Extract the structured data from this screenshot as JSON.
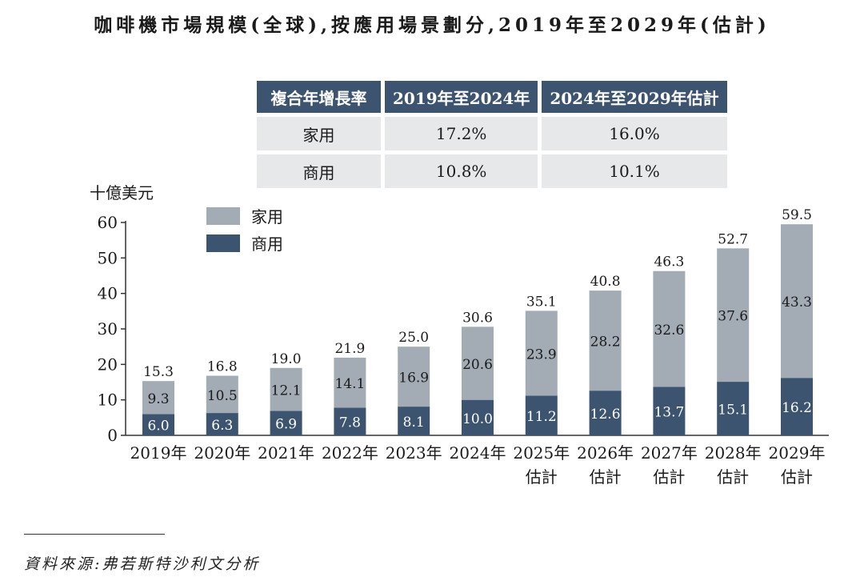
{
  "title": "咖啡機市場規模(全球),按應用場景劃分,2019年至2029年(估計)",
  "cagr_table": {
    "header": [
      "複合年增長率",
      "2019年至2024年",
      "2024年至2029年估計"
    ],
    "rows": [
      {
        "label": "家用",
        "v1": "17.2%",
        "v2": "16.0%"
      },
      {
        "label": "商用",
        "v1": "10.8%",
        "v2": "10.1%"
      }
    ]
  },
  "colors": {
    "home": "#a3abb5",
    "commercial": "#3d5470",
    "header_bg": "#3d5470",
    "cell_bg": "#e7e8ea"
  },
  "source": "資料來源:弗若斯特沙利文分析",
  "chart_data": {
    "type": "bar",
    "stacked": true,
    "ylabel": "十億美元",
    "ylim": [
      0,
      60
    ],
    "yticks": [
      0,
      10,
      20,
      30,
      40,
      50,
      60
    ],
    "legend_position": "top-left",
    "categories": [
      [
        "2019年"
      ],
      [
        "2020年"
      ],
      [
        "2021年"
      ],
      [
        "2022年"
      ],
      [
        "2023年"
      ],
      [
        "2024年"
      ],
      [
        "2025年",
        "估計"
      ],
      [
        "2026年",
        "估計"
      ],
      [
        "2027年",
        "估計"
      ],
      [
        "2028年",
        "估計"
      ],
      [
        "2029年",
        "估計"
      ]
    ],
    "series": [
      {
        "name": "商用",
        "values": [
          6.0,
          6.3,
          6.9,
          7.8,
          8.1,
          10.0,
          11.2,
          12.6,
          13.7,
          15.1,
          16.2
        ]
      },
      {
        "name": "家用",
        "values": [
          9.3,
          10.5,
          12.1,
          14.1,
          16.9,
          20.6,
          23.9,
          28.2,
          32.6,
          37.6,
          43.3
        ]
      }
    ],
    "totals": [
      15.3,
      16.8,
      19.0,
      21.9,
      25.0,
      30.6,
      35.1,
      40.8,
      46.3,
      52.7,
      59.5
    ],
    "legend": [
      {
        "name": "家用",
        "color": "#a3abb5"
      },
      {
        "name": "商用",
        "color": "#3d5470"
      }
    ]
  }
}
